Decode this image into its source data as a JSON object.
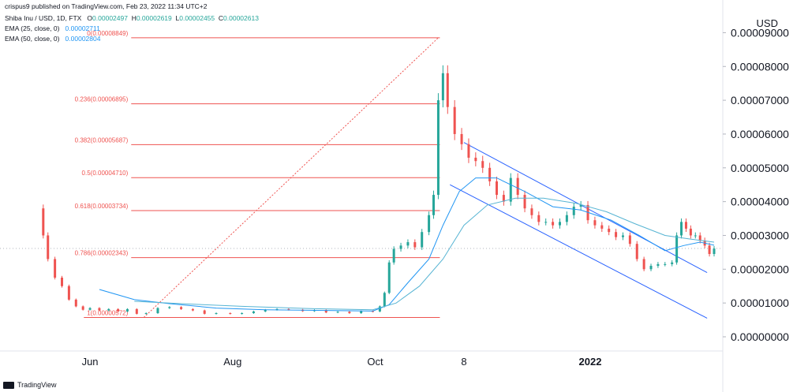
{
  "header": {
    "published": "crispus9 published on TradingView.com, Feb 23, 2022 11:34 UTC+2",
    "symbol_line": "Shiba Inu / USD, 1D, FTX",
    "ohlc": {
      "o_label": "O",
      "o": "0.00002497",
      "h_label": "H",
      "h": "0.00002619",
      "l_label": "L",
      "l": "0.00002455",
      "c_label": "C",
      "c": "0.00002613"
    },
    "ema25_label": "EMA (25, close, 0)",
    "ema25_value": "0.00002711",
    "ema50_label": "EMA (50, close, 0)",
    "ema50_value": "0.00002804"
  },
  "currency": "USD",
  "footer": {
    "brand": "TradingView"
  },
  "colors": {
    "up": "#26a69a",
    "down": "#ef5350",
    "ema25": "#2196f3",
    "ema50": "#56b4d3",
    "fib": "#ef5350",
    "channel": "#2962ff",
    "axis_text": "#131722"
  },
  "chart_data": {
    "type": "candlestick",
    "y_ticks": [
      "0.00009000",
      "0.00008000",
      "0.00007000",
      "0.00006000",
      "0.00005000",
      "0.00004000",
      "0.00003000",
      "0.00002000",
      "0.00001000",
      "0.00000000"
    ],
    "ylim": [
      0.0,
      9.15e-05
    ],
    "xlim": [
      "2021-05-07",
      "2022-02-23"
    ],
    "x_ticks": [
      {
        "label": "Jun",
        "date": "2021-06-01"
      },
      {
        "label": "Aug",
        "date": "2021-08-01"
      },
      {
        "label": "Oct",
        "date": "2021-10-01"
      },
      {
        "label": "8",
        "date": "2021-11-08"
      },
      {
        "label": "2022",
        "date": "2022-01-01"
      }
    ],
    "fibonacci": [
      {
        "label": "0(0.00008849)",
        "value": 8.849e-05
      },
      {
        "label": "0.236(0.00006895)",
        "value": 6.895e-05
      },
      {
        "label": "0.382(0.00005687)",
        "value": 5.687e-05
      },
      {
        "label": "0.5(0.00004710)",
        "value": 4.71e-05
      },
      {
        "label": "0.618(0.00003734)",
        "value": 3.734e-05
      },
      {
        "label": "0.786(0.00002343)",
        "value": 2.343e-05
      },
      {
        "label": "1(0.00000572)",
        "value": 5.72e-06
      }
    ],
    "fib_start": "2021-06-22",
    "fib_end": "2021-10-28",
    "channel": {
      "upper": [
        {
          "date": "2021-11-08",
          "value": 5.75e-05
        },
        {
          "date": "2022-02-20",
          "value": 1.9e-05
        }
      ],
      "lower": [
        {
          "date": "2021-11-02",
          "value": 4.5e-05
        },
        {
          "date": "2022-02-20",
          "value": 5.5e-06
        }
      ]
    },
    "close_series": [
      [
        "2021-05-10",
        3.8e-05
      ],
      [
        "2021-05-12",
        3e-05
      ],
      [
        "2021-05-14",
        2.3e-05
      ],
      [
        "2021-05-17",
        1.75e-05
      ],
      [
        "2021-05-20",
        1.5e-05
      ],
      [
        "2021-05-23",
        1.1e-05
      ],
      [
        "2021-05-26",
        9e-06
      ],
      [
        "2021-05-29",
        8e-06
      ],
      [
        "2021-06-01",
        8.5e-06
      ],
      [
        "2021-06-05",
        7.8e-06
      ],
      [
        "2021-06-09",
        8.2e-06
      ],
      [
        "2021-06-13",
        7.5e-06
      ],
      [
        "2021-06-17",
        8.2e-06
      ],
      [
        "2021-06-21",
        6.8e-06
      ],
      [
        "2021-06-25",
        7e-06
      ],
      [
        "2021-06-30",
        8.5e-06
      ],
      [
        "2021-07-05",
        8.8e-06
      ],
      [
        "2021-07-10",
        8.2e-06
      ],
      [
        "2021-07-15",
        7.8e-06
      ],
      [
        "2021-07-20",
        6.8e-06
      ],
      [
        "2021-07-25",
        7e-06
      ],
      [
        "2021-07-31",
        6.8e-06
      ],
      [
        "2021-08-05",
        7e-06
      ],
      [
        "2021-08-10",
        7.5e-06
      ],
      [
        "2021-08-15",
        8e-06
      ],
      [
        "2021-08-20",
        8.2e-06
      ],
      [
        "2021-08-25",
        8e-06
      ],
      [
        "2021-08-31",
        7.6e-06
      ],
      [
        "2021-09-05",
        7.9e-06
      ],
      [
        "2021-09-10",
        7.2e-06
      ],
      [
        "2021-09-15",
        7.4e-06
      ],
      [
        "2021-09-20",
        7e-06
      ],
      [
        "2021-09-25",
        7.6e-06
      ],
      [
        "2021-09-30",
        7.5e-06
      ],
      [
        "2021-10-03",
        9e-06
      ],
      [
        "2021-10-05",
        1.3e-05
      ],
      [
        "2021-10-07",
        2.2e-05
      ],
      [
        "2021-10-09",
        2.6e-05
      ],
      [
        "2021-10-12",
        2.7e-05
      ],
      [
        "2021-10-15",
        2.8e-05
      ],
      [
        "2021-10-18",
        2.65e-05
      ],
      [
        "2021-10-21",
        3.1e-05
      ],
      [
        "2021-10-24",
        3.6e-05
      ],
      [
        "2021-10-26",
        4.2e-05
      ],
      [
        "2021-10-28",
        7e-05
      ],
      [
        "2021-10-30",
        7.8e-05
      ],
      [
        "2021-11-01",
        6.8e-05
      ],
      [
        "2021-11-04",
        6e-05
      ],
      [
        "2021-11-07",
        5.7e-05
      ],
      [
        "2021-11-10",
        5.3e-05
      ],
      [
        "2021-11-13",
        5.2e-05
      ],
      [
        "2021-11-16",
        5e-05
      ],
      [
        "2021-11-19",
        4.6e-05
      ],
      [
        "2021-11-22",
        4.2e-05
      ],
      [
        "2021-11-25",
        4e-05
      ],
      [
        "2021-11-28",
        4.7e-05
      ],
      [
        "2021-12-01",
        4.2e-05
      ],
      [
        "2021-12-04",
        3.8e-05
      ],
      [
        "2021-12-07",
        3.6e-05
      ],
      [
        "2021-12-10",
        3.4e-05
      ],
      [
        "2021-12-13",
        3.4e-05
      ],
      [
        "2021-12-16",
        3.3e-05
      ],
      [
        "2021-12-19",
        3.4e-05
      ],
      [
        "2021-12-22",
        3.6e-05
      ],
      [
        "2021-12-25",
        3.85e-05
      ],
      [
        "2021-12-28",
        3.9e-05
      ],
      [
        "2021-12-31",
        3.45e-05
      ],
      [
        "2022-01-03",
        3.3e-05
      ],
      [
        "2022-01-06",
        3.2e-05
      ],
      [
        "2022-01-09",
        3.1e-05
      ],
      [
        "2022-01-12",
        2.95e-05
      ],
      [
        "2022-01-15",
        3e-05
      ],
      [
        "2022-01-18",
        2.75e-05
      ],
      [
        "2022-01-21",
        2.3e-05
      ],
      [
        "2022-01-24",
        2e-05
      ],
      [
        "2022-01-27",
        2.1e-05
      ],
      [
        "2022-01-30",
        2.15e-05
      ],
      [
        "2022-02-02",
        2.15e-05
      ],
      [
        "2022-02-05",
        2.2e-05
      ],
      [
        "2022-02-07",
        3e-05
      ],
      [
        "2022-02-09",
        3.4e-05
      ],
      [
        "2022-02-11",
        3.2e-05
      ],
      [
        "2022-02-13",
        3e-05
      ],
      [
        "2022-02-15",
        3e-05
      ],
      [
        "2022-02-17",
        2.85e-05
      ],
      [
        "2022-02-19",
        2.7e-05
      ],
      [
        "2022-02-21",
        2.45e-05
      ],
      [
        "2022-02-23",
        2.61e-05
      ]
    ],
    "ema25_series": [
      [
        "2021-06-05",
        1.4e-05
      ],
      [
        "2021-06-20",
        1.1e-05
      ],
      [
        "2021-07-05",
        9.8e-06
      ],
      [
        "2021-07-25",
        8.5e-06
      ],
      [
        "2021-08-15",
        8e-06
      ],
      [
        "2021-09-10",
        7.8e-06
      ],
      [
        "2021-09-30",
        7.6e-06
      ],
      [
        "2021-10-07",
        9.5e-06
      ],
      [
        "2021-10-15",
        1.6e-05
      ],
      [
        "2021-10-24",
        2.3e-05
      ],
      [
        "2021-10-30",
        3.3e-05
      ],
      [
        "2021-11-06",
        4.3e-05
      ],
      [
        "2021-11-13",
        4.7e-05
      ],
      [
        "2021-11-22",
        4.7e-05
      ],
      [
        "2021-12-04",
        4.3e-05
      ],
      [
        "2021-12-16",
        3.85e-05
      ],
      [
        "2021-12-28",
        3.75e-05
      ],
      [
        "2022-01-10",
        3.45e-05
      ],
      [
        "2022-01-22",
        3e-05
      ],
      [
        "2022-02-02",
        2.55e-05
      ],
      [
        "2022-02-10",
        2.7e-05
      ],
      [
        "2022-02-17",
        2.8e-05
      ],
      [
        "2022-02-23",
        2.71e-05
      ]
    ],
    "ema50_series": [
      [
        "2021-06-20",
        1.05e-05
      ],
      [
        "2021-07-10",
        9.8e-06
      ],
      [
        "2021-08-05",
        9e-06
      ],
      [
        "2021-09-05",
        8.3e-06
      ],
      [
        "2021-09-30",
        8e-06
      ],
      [
        "2021-10-10",
        1e-05
      ],
      [
        "2021-10-20",
        1.5e-05
      ],
      [
        "2021-10-30",
        2.3e-05
      ],
      [
        "2021-11-08",
        3.3e-05
      ],
      [
        "2021-11-18",
        3.9e-05
      ],
      [
        "2021-11-30",
        4.1e-05
      ],
      [
        "2021-12-12",
        4.1e-05
      ],
      [
        "2021-12-26",
        3.95e-05
      ],
      [
        "2022-01-08",
        3.7e-05
      ],
      [
        "2022-01-20",
        3.35e-05
      ],
      [
        "2022-02-02",
        3e-05
      ],
      [
        "2022-02-12",
        2.9e-05
      ],
      [
        "2022-02-23",
        2.8e-05
      ]
    ],
    "current_price": 2.613e-05
  }
}
